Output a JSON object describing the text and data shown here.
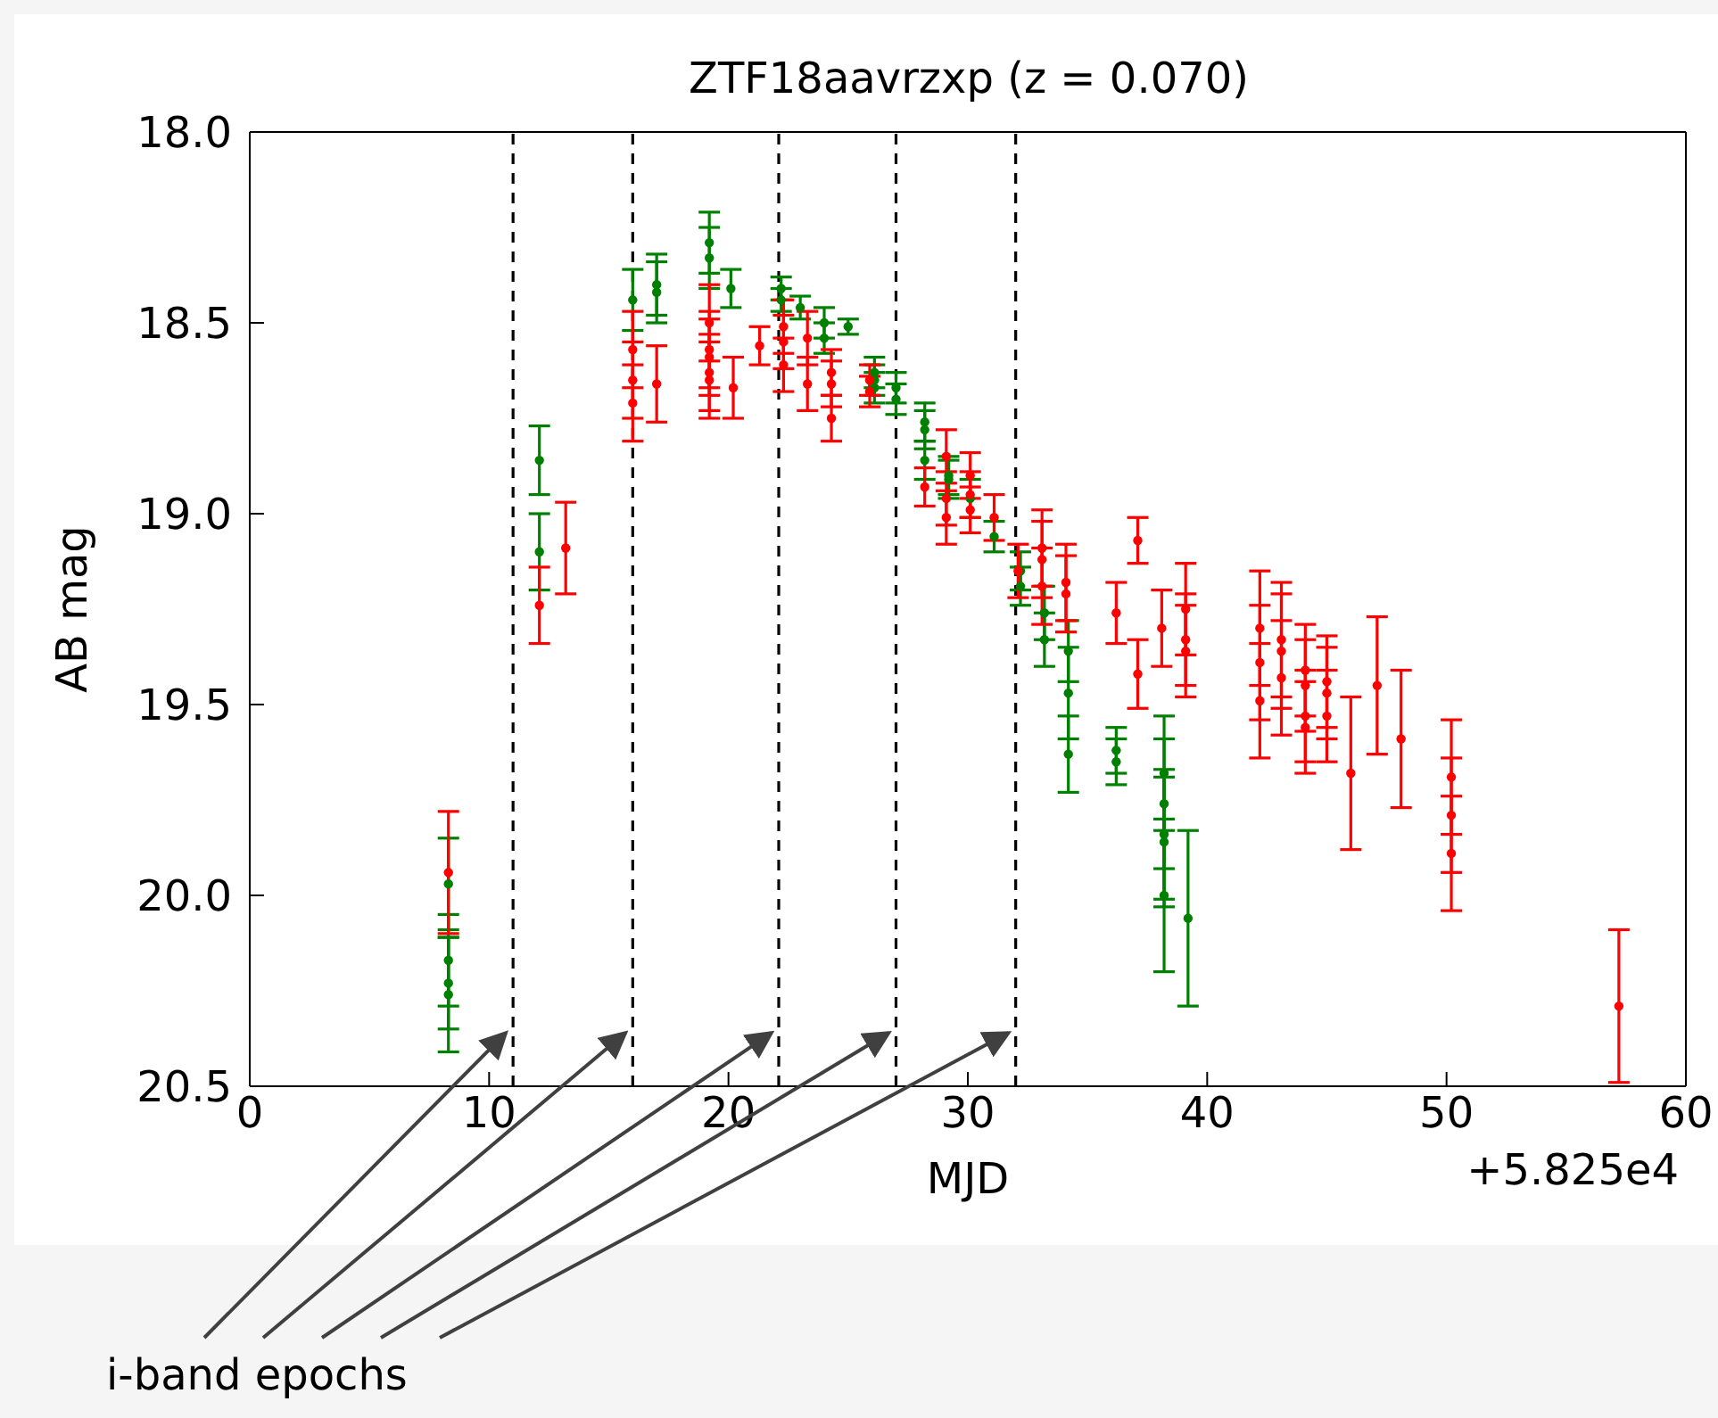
{
  "chart_data": {
    "type": "scatter",
    "title": "ZTF18aavrzxp (z = 0.070)",
    "xlabel": "MJD",
    "ylabel": "AB mag",
    "xlim": [
      0,
      60
    ],
    "xticks": [
      0,
      10,
      20,
      30,
      40,
      50,
      60
    ],
    "ylim": [
      20.5,
      18.0
    ],
    "yticks": [
      {
        "value": 18.0,
        "label": "18.0"
      },
      {
        "value": 18.5,
        "label": "18.5"
      },
      {
        "value": 19.0,
        "label": "19.0"
      },
      {
        "value": 19.5,
        "label": "19.5"
      },
      {
        "value": 20.0,
        "label": "20.0"
      },
      {
        "value": 20.5,
        "label": "20.5"
      }
    ],
    "grid": false,
    "legend": false,
    "marker": "circle",
    "annotations": [
      "+5.825e4",
      {
        "text": "i-band epochs",
        "x": 22.1,
        "y": 20.36
      }
    ],
    "ref_lines": [
      {
        "axis": "x",
        "value": 11,
        "line_style": "dashed",
        "color": "#000000"
      },
      {
        "axis": "x",
        "value": 16,
        "line_style": "dashed",
        "color": "#000000"
      },
      {
        "axis": "x",
        "value": 22.1,
        "line_style": "dashed",
        "color": "#000000"
      },
      {
        "axis": "x",
        "value": 27,
        "line_style": "dashed",
        "color": "#000000"
      },
      {
        "axis": "x",
        "value": 32,
        "line_style": "dashed",
        "color": "#000000"
      }
    ],
    "series": [
      {
        "color": "#008000",
        "x": [
          8.3,
          8.3,
          8.3,
          8.3,
          12.1,
          12.1,
          16.0,
          17.0,
          17.0,
          19.2,
          19.2,
          20.1,
          22.2,
          22.2,
          23.0,
          24.0,
          24.0,
          25.0,
          26.1,
          26.1,
          26.1,
          27.0,
          27.0,
          28.2,
          28.2,
          28.2,
          29.2,
          29.2,
          30.1,
          31.1,
          32.2,
          32.2,
          33.2,
          33.2,
          34.2,
          34.2,
          34.2,
          36.2,
          36.2,
          38.2,
          38.2,
          38.2,
          38.2,
          38.2,
          39.2
        ],
        "values": [
          19.97,
          20.17,
          20.23,
          20.26,
          18.86,
          19.1,
          18.44,
          18.4,
          18.42,
          18.29,
          18.33,
          18.41,
          18.41,
          18.44,
          18.46,
          18.5,
          18.54,
          18.51,
          18.63,
          18.65,
          18.67,
          18.67,
          18.7,
          18.76,
          18.78,
          18.86,
          18.9,
          18.91,
          18.96,
          19.06,
          19.19,
          19.15,
          19.26,
          19.33,
          19.36,
          19.47,
          19.63,
          19.62,
          19.65,
          19.68,
          19.76,
          19.84,
          19.86,
          20.0,
          20.06
        ],
        "errors": [
          0.12,
          0.12,
          0.12,
          0.15,
          0.09,
          0.1,
          0.08,
          0.08,
          0.08,
          0.08,
          0.08,
          0.05,
          0.03,
          0.03,
          0.03,
          0.04,
          0.04,
          0.02,
          0.04,
          0.04,
          0.04,
          0.04,
          0.04,
          0.05,
          0.05,
          0.05,
          0.05,
          0.05,
          0.05,
          0.04,
          0.05,
          0.05,
          0.07,
          0.07,
          0.08,
          0.12,
          0.1,
          0.06,
          0.06,
          0.15,
          0.17,
          0.17,
          0.17,
          0.2,
          0.23
        ]
      },
      {
        "color": "#ff0000",
        "x": [
          8.3,
          12.1,
          13.2,
          16.0,
          16.0,
          16.0,
          17.0,
          19.2,
          19.2,
          19.2,
          19.2,
          19.2,
          20.2,
          21.3,
          22.3,
          22.3,
          22.3,
          23.3,
          23.3,
          24.3,
          24.3,
          24.3,
          25.9,
          25.9,
          28.2,
          29.1,
          29.1,
          29.1,
          30.1,
          30.1,
          30.1,
          31.1,
          32.1,
          33.1,
          33.1,
          33.1,
          34.1,
          34.1,
          36.2,
          37.1,
          37.1,
          38.1,
          39.1,
          39.1,
          39.1,
          42.2,
          42.2,
          42.2,
          43.1,
          43.1,
          43.1,
          44.1,
          44.1,
          44.1,
          44.1,
          45.0,
          45.0,
          45.0,
          46.0,
          47.1,
          48.1,
          50.2,
          50.2,
          50.2,
          57.2
        ],
        "values": [
          19.94,
          19.24,
          19.09,
          18.57,
          18.65,
          18.71,
          18.66,
          18.5,
          18.57,
          18.59,
          18.63,
          18.65,
          18.67,
          18.56,
          18.51,
          18.55,
          18.61,
          18.54,
          18.66,
          18.63,
          18.66,
          18.75,
          18.65,
          18.68,
          18.93,
          18.85,
          18.96,
          19.01,
          18.9,
          18.95,
          18.99,
          19.01,
          19.15,
          19.09,
          19.12,
          19.19,
          19.18,
          19.21,
          19.26,
          19.07,
          19.42,
          19.3,
          19.25,
          19.33,
          19.36,
          19.3,
          19.39,
          19.49,
          19.33,
          19.36,
          19.43,
          19.41,
          19.45,
          19.53,
          19.56,
          19.44,
          19.47,
          19.53,
          19.68,
          19.45,
          19.59,
          19.69,
          19.79,
          19.89,
          20.29
        ],
        "errors": [
          0.16,
          0.1,
          0.12,
          0.1,
          0.1,
          0.1,
          0.1,
          0.1,
          0.1,
          0.1,
          0.1,
          0.1,
          0.08,
          0.05,
          0.07,
          0.07,
          0.07,
          0.07,
          0.07,
          0.06,
          0.06,
          0.06,
          0.04,
          0.04,
          0.05,
          0.07,
          0.07,
          0.07,
          0.06,
          0.06,
          0.06,
          0.06,
          0.07,
          0.1,
          0.1,
          0.1,
          0.1,
          0.1,
          0.08,
          0.06,
          0.09,
          0.1,
          0.12,
          0.12,
          0.12,
          0.15,
          0.15,
          0.15,
          0.15,
          0.15,
          0.15,
          0.12,
          0.12,
          0.12,
          0.12,
          0.12,
          0.12,
          0.12,
          0.2,
          0.18,
          0.18,
          0.15,
          0.15,
          0.15,
          0.2
        ]
      }
    ]
  }
}
